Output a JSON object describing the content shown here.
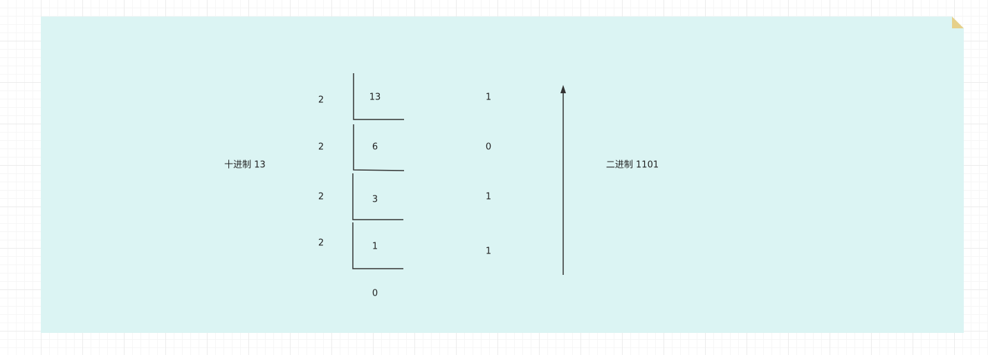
{
  "decimal_label": "十进制 13",
  "binary_label": "二进制 1101",
  "steps": [
    {
      "divisor": "2",
      "dividend": "13",
      "remainder": "1"
    },
    {
      "divisor": "2",
      "dividend": "6",
      "remainder": "0"
    },
    {
      "divisor": "2",
      "dividend": "3",
      "remainder": "1"
    },
    {
      "divisor": "2",
      "dividend": "1",
      "remainder": "1"
    }
  ],
  "final_quotient": "0",
  "arrow_direction": "up",
  "colors": {
    "note_fill": "#dbf4f3",
    "note_fold": "#e6d08a",
    "stroke": "#333333",
    "text": "#222222"
  }
}
